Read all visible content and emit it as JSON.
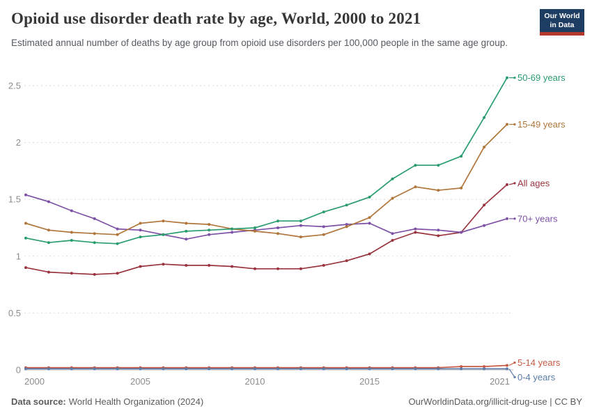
{
  "header": {
    "title": "Opioid use disorder death rate by age, World, 2000 to 2021",
    "subtitle": "Estimated annual number of deaths by age group from opioid use disorders per 100,000 people in the same age group.",
    "logo": {
      "line1": "Our World",
      "line2": "in Data",
      "bg_color": "#1d3d63",
      "accent_color": "#b5382f"
    }
  },
  "chart_data": {
    "type": "line",
    "title": "Opioid use disorder death rate by age, World, 2000 to 2021",
    "xlabel": "",
    "ylabel": "",
    "grid": "horizontal-dashed",
    "legend_position": "right-of-line-ends",
    "ylim": [
      0,
      2.65
    ],
    "x": [
      2000,
      2001,
      2002,
      2003,
      2004,
      2005,
      2006,
      2007,
      2008,
      2009,
      2010,
      2011,
      2012,
      2013,
      2014,
      2015,
      2016,
      2017,
      2018,
      2019,
      2020,
      2021
    ],
    "x_ticks": [
      2000,
      2005,
      2010,
      2015,
      2021
    ],
    "y_ticks": [
      0,
      0.5,
      1,
      1.5,
      2,
      2.5
    ],
    "series": [
      {
        "name": "50-69 years",
        "color": "#2a9d6e",
        "values": [
          1.16,
          1.12,
          1.14,
          1.12,
          1.11,
          1.17,
          1.19,
          1.22,
          1.23,
          1.24,
          1.25,
          1.31,
          1.31,
          1.39,
          1.45,
          1.52,
          1.68,
          1.8,
          1.8,
          1.88,
          2.22,
          2.57
        ]
      },
      {
        "name": "15-49 years",
        "color": "#b0763b",
        "values": [
          1.29,
          1.23,
          1.21,
          1.2,
          1.19,
          1.29,
          1.31,
          1.29,
          1.28,
          1.24,
          1.22,
          1.2,
          1.17,
          1.19,
          1.26,
          1.34,
          1.51,
          1.61,
          1.58,
          1.6,
          1.96,
          2.16
        ]
      },
      {
        "name": "All ages",
        "color": "#9a3540",
        "values": [
          0.9,
          0.86,
          0.85,
          0.84,
          0.85,
          0.91,
          0.93,
          0.92,
          0.92,
          0.91,
          0.89,
          0.89,
          0.89,
          0.92,
          0.96,
          1.02,
          1.14,
          1.21,
          1.18,
          1.21,
          1.45,
          1.63
        ]
      },
      {
        "name": "70+ years",
        "color": "#7d51a6",
        "values": [
          1.54,
          1.48,
          1.4,
          1.33,
          1.24,
          1.23,
          1.19,
          1.15,
          1.19,
          1.21,
          1.23,
          1.25,
          1.27,
          1.26,
          1.28,
          1.29,
          1.2,
          1.24,
          1.23,
          1.21,
          1.27,
          1.33
        ]
      },
      {
        "name": "5-14 years",
        "color": "#c75b44",
        "values": [
          0.02,
          0.02,
          0.02,
          0.02,
          0.02,
          0.02,
          0.02,
          0.02,
          0.02,
          0.02,
          0.02,
          0.02,
          0.02,
          0.02,
          0.02,
          0.02,
          0.02,
          0.02,
          0.02,
          0.03,
          0.03,
          0.04
        ]
      },
      {
        "name": "0-4 years",
        "color": "#5b7cab",
        "values": [
          0.01,
          0.01,
          0.01,
          0.01,
          0.01,
          0.01,
          0.01,
          0.01,
          0.01,
          0.01,
          0.01,
          0.01,
          0.01,
          0.01,
          0.01,
          0.01,
          0.01,
          0.01,
          0.01,
          0.01,
          0.01,
          0.01
        ]
      }
    ]
  },
  "footer": {
    "source_label": "Data source:",
    "source_value": "World Health Organization (2024)",
    "credit": "OurWorldinData.org/illicit-drug-use | CC BY"
  }
}
